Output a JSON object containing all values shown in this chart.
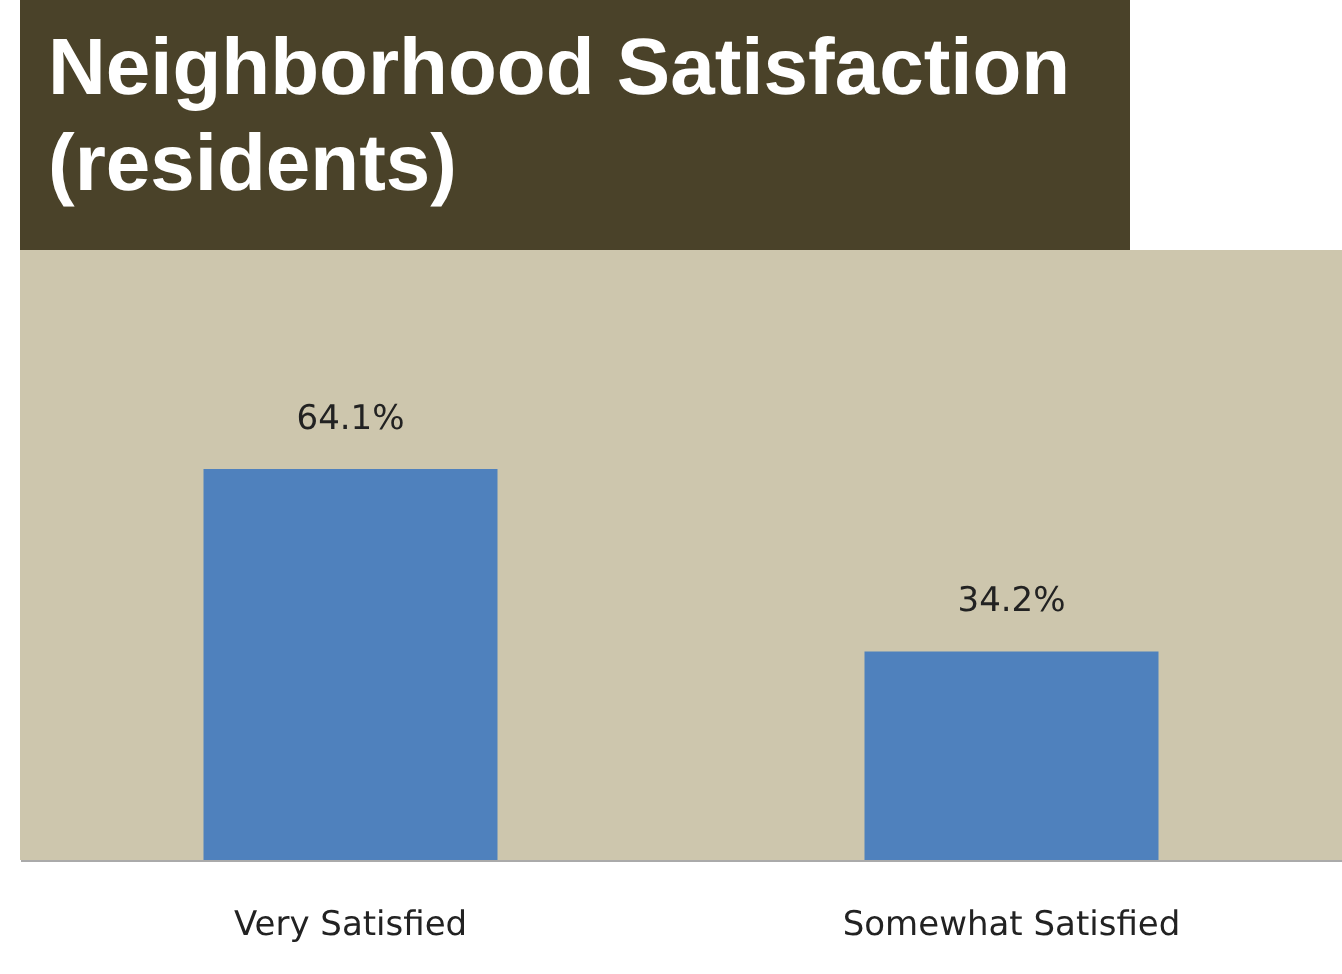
{
  "chart_data": {
    "type": "bar",
    "title": "Neighborhood Satisfaction (residents)",
    "categories": [
      "Very Satisfied",
      "Somewhat Satisfied"
    ],
    "values": [
      64.1,
      34.2
    ],
    "color": "#4f81bd",
    "value_labels": [
      "64.1%",
      "34.2%"
    ],
    "ylim": [
      0,
      100
    ],
    "tick_labels": "x",
    "grid": false
  }
}
